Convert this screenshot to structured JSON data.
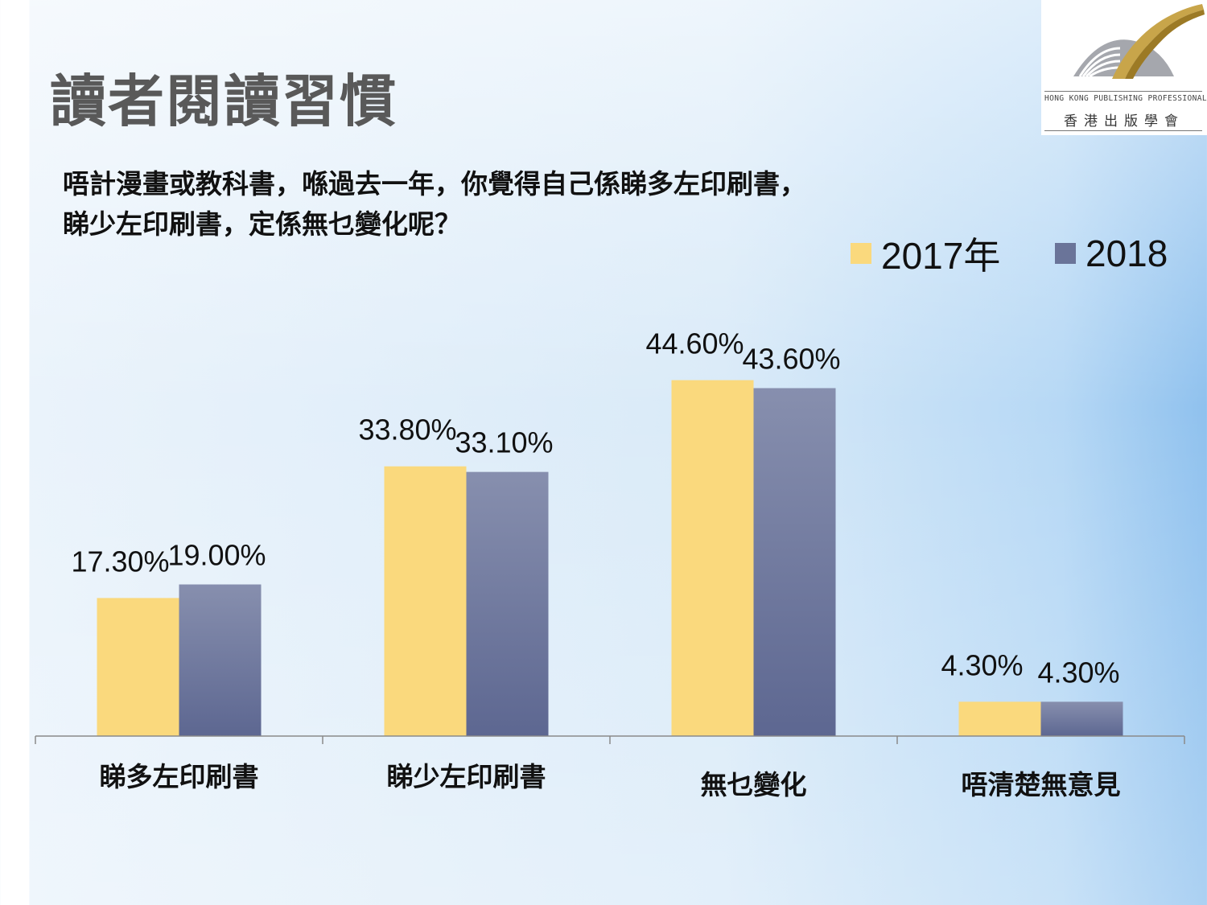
{
  "slide": {
    "title": "讀者閱讀習慣",
    "question_line1": "唔計漫畫或教科書，喺過去一年，你覺得自己係睇多左印刷書，",
    "question_line2": "睇少左印刷書，定係無乜變化呢？"
  },
  "logo": {
    "english": "HONG KONG PUBLISHING PROFESSIONALS SOCIETY",
    "chinese": "香港出版學會",
    "colors": {
      "arc": "#c8a54a",
      "arc_dark": "#9c7a25",
      "dome": "#a5a7ad"
    }
  },
  "chart_data": {
    "type": "bar",
    "categories": [
      "睇多左印刷書",
      "睇少左印刷書",
      "無乜變化",
      "唔清楚無意見"
    ],
    "series": [
      {
        "name": "2017年",
        "values": [
          17.3,
          33.8,
          44.6,
          4.3
        ],
        "labels": [
          "17.30%",
          "33.80%",
          "44.60%",
          "4.30%"
        ],
        "color": "#fad97d"
      },
      {
        "name": "2018",
        "values": [
          19.0,
          33.1,
          43.6,
          4.3
        ],
        "labels": [
          "19.00%",
          "33.10%",
          "43.60%",
          "4.30%"
        ],
        "color": "#6a7499"
      }
    ],
    "ylim": [
      0,
      50
    ],
    "legend_position": "top-right",
    "grid": false
  }
}
